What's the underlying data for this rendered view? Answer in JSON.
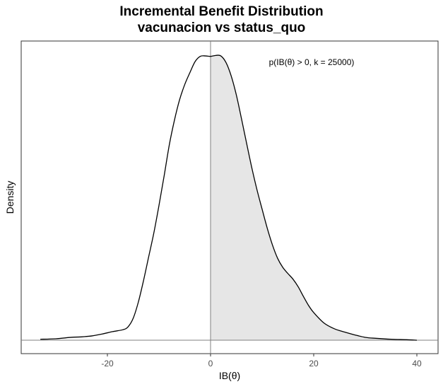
{
  "chart_data": {
    "type": "area",
    "title": "Incremental Benefit Distribution",
    "subtitle": "vacunacion vs status_quo",
    "xlabel": "IB(θ)",
    "ylabel": "Density",
    "annotation": "p(IB(θ) > 0, k = 25000)",
    "xlim": [
      -33,
      41
    ],
    "ylim": [
      0,
      0.059
    ],
    "x_ticks": [
      -20,
      0,
      20,
      40
    ],
    "x_tick_labels": [
      "-20",
      "0",
      "20",
      "40"
    ],
    "y_ticks_shown": false,
    "grid": false,
    "shaded_region": {
      "from": 0,
      "to": 40,
      "fill": "#e6e6e6"
    },
    "reference_lines": {
      "vertical_x": 0,
      "horizontal_y": 0,
      "color": "#808080"
    },
    "series": [
      {
        "x": [
          -33,
          -30,
          -27,
          -25,
          -23,
          -21,
          -19,
          -17,
          -16,
          -15,
          -14,
          -13,
          -12,
          -11,
          -10,
          -9,
          -8,
          -7,
          -6,
          -5,
          -4,
          -3,
          -2,
          -1,
          0,
          1,
          2,
          3,
          4,
          5,
          6,
          7,
          8,
          9,
          10,
          11,
          12,
          13,
          14,
          15,
          16,
          17,
          18,
          19,
          20,
          22,
          24,
          26,
          28,
          30,
          32,
          35,
          38,
          40
        ],
        "y": [
          0.0002,
          0.0003,
          0.0006,
          0.0007,
          0.0009,
          0.0013,
          0.0018,
          0.0022,
          0.0028,
          0.0046,
          0.008,
          0.0125,
          0.0175,
          0.0225,
          0.0283,
          0.0345,
          0.041,
          0.0462,
          0.0505,
          0.0537,
          0.0562,
          0.0585,
          0.0596,
          0.0597,
          0.0596,
          0.0598,
          0.0597,
          0.0583,
          0.0555,
          0.0515,
          0.0465,
          0.0413,
          0.0362,
          0.0316,
          0.0275,
          0.0235,
          0.02,
          0.0172,
          0.0153,
          0.014,
          0.0128,
          0.0112,
          0.0092,
          0.0073,
          0.0058,
          0.0036,
          0.0024,
          0.0017,
          0.0011,
          0.0006,
          0.0004,
          0.0002,
          0.0001,
          0.0
        ]
      }
    ]
  }
}
